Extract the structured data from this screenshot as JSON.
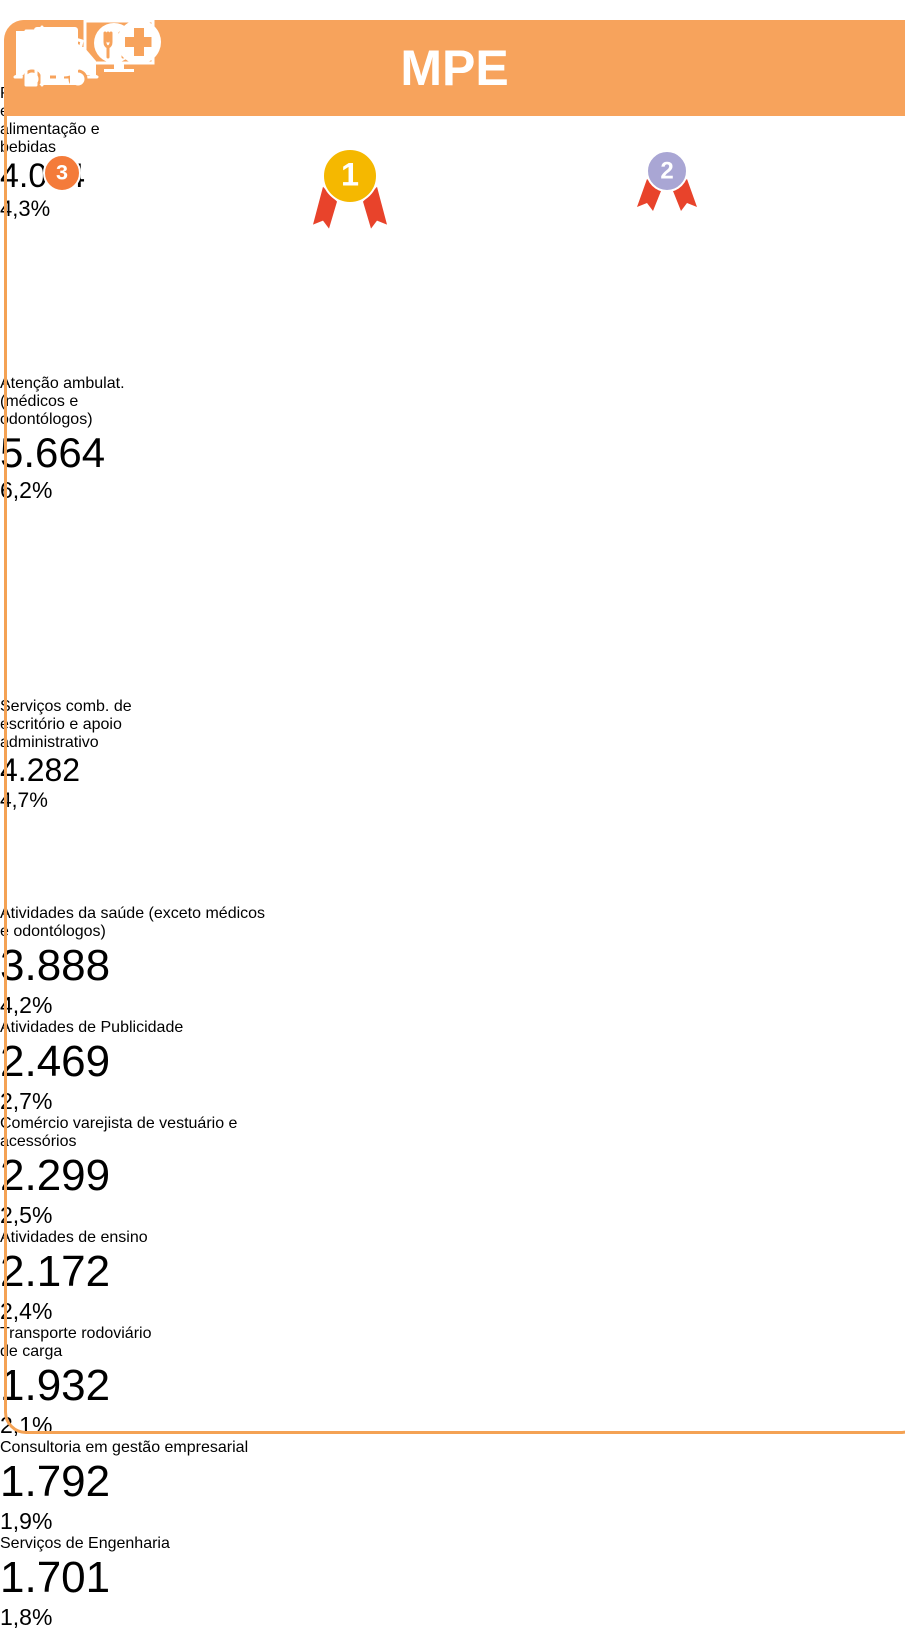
{
  "title": "MPE",
  "top_cards": [
    {
      "rank": "3",
      "label_lines": [
        "Restaurantes e",
        "estab. de",
        "alimentação e",
        "bebidas"
      ],
      "value": "4.004",
      "share": "4,3%"
    },
    {
      "rank": "1",
      "label_lines": [
        "Atenção ambulat.",
        "(médicos e",
        "odontólogos)"
      ],
      "value": "5.664",
      "share": "6,2%"
    },
    {
      "rank": "2",
      "label_lines": [
        "Serviços comb. de",
        "escritório e apoio",
        "administrativo"
      ],
      "value": "4.282",
      "share": "4,7%"
    }
  ],
  "rows": [
    {
      "label_lines": [
        "Atividades da saúde (exceto médicos",
        "e odontólogos)"
      ],
      "value": "3.888",
      "share": "4,2%"
    },
    {
      "label_lines": [
        "Atividades de Publicidade"
      ],
      "value": "2.469",
      "share": "2,7%"
    },
    {
      "label_lines": [
        "Comércio varejista de vestuário e",
        "acessórios"
      ],
      "value": "2.299",
      "share": "2,5%"
    },
    {
      "label_lines": [
        "Atividades de ensino"
      ],
      "value": "2.172",
      "share": "2,4%"
    },
    {
      "label_lines": [
        "Transporte rodoviário",
        "de carga"
      ],
      "value": "1.932",
      "share": "2,1%"
    },
    {
      "label_lines": [
        "Consultoria em gestão empresarial"
      ],
      "value": "1.792",
      "share": "1,9%"
    },
    {
      "label_lines": [
        "Serviços de Engenharia"
      ],
      "value": "1.701",
      "share": "1,8%"
    }
  ]
}
